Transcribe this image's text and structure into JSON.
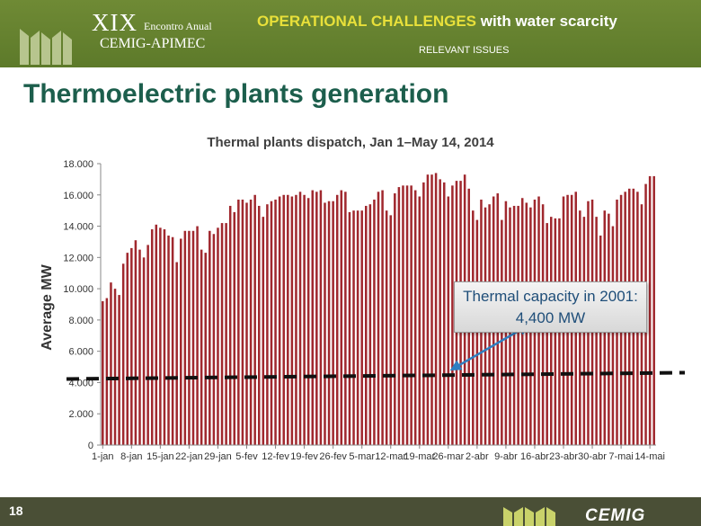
{
  "header": {
    "event_numeral": "XIX",
    "event_subtitle": "Encontro Anual",
    "event_name": "CEMIG-APIMEC",
    "section_title_highlight": "OPERATIONAL CHALLENGES",
    "section_title_rest": " with water scarcity",
    "section_subtitle": "RELEVANT ISSUES",
    "background_color": "#5d7a2a",
    "highlight_color": "#e8e03a"
  },
  "slide": {
    "title": "Thermoelectric plants generation",
    "title_color": "#1c5e4c"
  },
  "callout": {
    "line1": "Thermal capacity in 2001:",
    "line2": "4,400 MW",
    "arrow_color": "#2f7fc1"
  },
  "footer": {
    "page_number": "18",
    "brand": "CEMIG"
  },
  "chart_data": {
    "type": "bar",
    "title": "Thermal plants dispatch, Jan 1–May 14, 2014",
    "ylabel": "Average MW",
    "xlabel": "",
    "ylim": [
      0,
      18000
    ],
    "yticks": [
      "0",
      "2.000",
      "4.000",
      "6.000",
      "8.000",
      "10.000",
      "12.000",
      "14.000",
      "16.000",
      "18.000"
    ],
    "xtick_labels": [
      "1-jan",
      "8-jan",
      "15-jan",
      "22-jan",
      "29-jan",
      "5-fev",
      "12-fev",
      "19-fev",
      "26-fev",
      "5-mar",
      "12-mar",
      "19-mar",
      "26-mar",
      "2-abr",
      "9-abr",
      "16-abr",
      "23-abr",
      "30-abr",
      "7-mai",
      "14-mai"
    ],
    "bar_color": "#a0282e",
    "reference_line": {
      "value": 4400,
      "style": "dashed",
      "color": "#111111"
    },
    "values": [
      9200,
      9400,
      10400,
      10000,
      9600,
      11600,
      12300,
      12600,
      13100,
      12500,
      12000,
      12800,
      13800,
      14100,
      13900,
      13800,
      13400,
      13300,
      11700,
      13200,
      13700,
      13700,
      13700,
      14000,
      12500,
      12300,
      13700,
      13500,
      13900,
      14200,
      14200,
      15300,
      14900,
      15700,
      15700,
      15500,
      15700,
      16000,
      15300,
      14600,
      15400,
      15600,
      15700,
      15900,
      16000,
      16000,
      15900,
      16000,
      16200,
      16000,
      15800,
      16300,
      16200,
      16300,
      15500,
      15600,
      15600,
      16000,
      16300,
      16200,
      14900,
      15000,
      15000,
      15000,
      15300,
      15400,
      15700,
      16200,
      16300,
      15000,
      14700,
      16100,
      16500,
      16600,
      16600,
      16600,
      16300,
      15900,
      16800,
      17300,
      17300,
      17400,
      17000,
      16800,
      15900,
      16600,
      16900,
      16900,
      17300,
      16400,
      15000,
      14400,
      15700,
      15200,
      15400,
      15900,
      16100,
      14400,
      15600,
      15200,
      15300,
      15300,
      15800,
      15500,
      15200,
      15700,
      15900,
      15400,
      14200,
      14600,
      14500,
      14500,
      15900,
      16000,
      16000,
      16200,
      15000,
      14600,
      15600,
      15700,
      14600,
      13400,
      15000,
      14800,
      14000,
      15700,
      16000,
      16200,
      16400,
      16400,
      16200,
      15400,
      16700,
      17200,
      17200
    ]
  }
}
